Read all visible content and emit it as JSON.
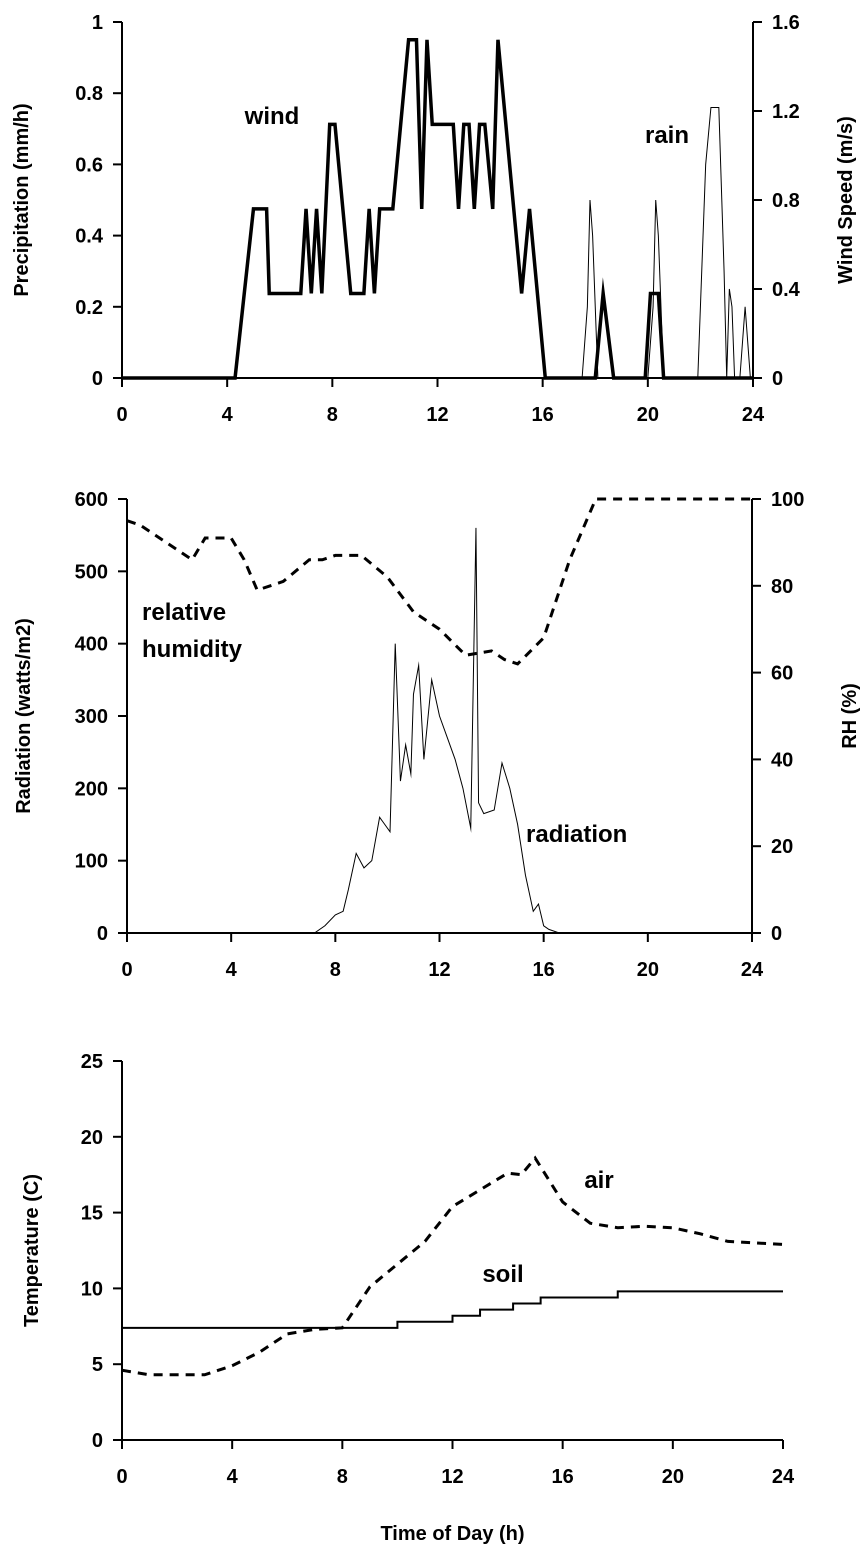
{
  "chart_data": [
    {
      "type": "line",
      "x_ticks": [
        "0",
        "4",
        "8",
        "12",
        "16",
        "20",
        "24"
      ],
      "xlim": [
        0,
        24
      ],
      "left_axis": {
        "label": "Precipitation (mm/h)",
        "ticks": [
          "0",
          "0.2",
          "0.4",
          "0.6",
          "0.8",
          "1"
        ],
        "ylim": [
          0,
          1
        ]
      },
      "right_axis": {
        "label": "Wind Speed (m/s)",
        "ticks": [
          "0",
          "0.4",
          "0.8",
          "1.2",
          "1.6"
        ],
        "ylim": [
          0,
          1.6
        ]
      },
      "annotations": {
        "wind": "wind",
        "rain": "rain"
      },
      "series": [
        {
          "name": "wind",
          "axis": "right",
          "style": "thick",
          "x": [
            0,
            4.3,
            5.0,
            5.5,
            5.6,
            6.6,
            6.8,
            7.0,
            7.2,
            7.4,
            7.6,
            7.9,
            8.1,
            8.4,
            8.7,
            9.0,
            9.2,
            9.4,
            9.6,
            9.8,
            10.3,
            10.6,
            10.9,
            11.2,
            11.4,
            11.6,
            11.8,
            12.6,
            12.8,
            13.0,
            13.2,
            13.4,
            13.6,
            13.8,
            14.1,
            14.3,
            14.6,
            15.2,
            15.5,
            16.1,
            18.0,
            18.3,
            18.7,
            19.9,
            20.1,
            20.4,
            20.6,
            24.0
          ],
          "y": [
            0,
            0,
            0.76,
            0.76,
            0.38,
            0.38,
            0.38,
            0.76,
            0.38,
            0.76,
            0.38,
            1.14,
            1.14,
            0.76,
            0.38,
            0.38,
            0.38,
            0.76,
            0.38,
            0.76,
            0.76,
            1.14,
            1.52,
            1.52,
            0.76,
            1.52,
            1.14,
            1.14,
            0.76,
            1.14,
            1.14,
            0.76,
            1.14,
            1.14,
            0.76,
            1.52,
            1.14,
            0.38,
            0.76,
            0,
            0,
            0.38,
            0,
            0,
            0.38,
            0.38,
            0,
            0
          ]
        },
        {
          "name": "rain",
          "axis": "left",
          "style": "thin",
          "x": [
            17.5,
            17.7,
            17.8,
            17.9,
            18.1,
            20.0,
            20.2,
            20.3,
            20.4,
            20.6,
            21.9,
            22.2,
            22.4,
            22.7,
            22.9,
            23.0,
            23.1,
            23.2,
            23.3,
            23.5,
            23.7,
            23.9
          ],
          "y": [
            0,
            0.2,
            0.5,
            0.4,
            0,
            0,
            0.2,
            0.5,
            0.4,
            0,
            0,
            0.6,
            0.76,
            0.76,
            0.3,
            0,
            0.25,
            0.2,
            0,
            0,
            0.2,
            0
          ]
        }
      ]
    },
    {
      "type": "line",
      "x_ticks": [
        "0",
        "4",
        "8",
        "12",
        "16",
        "20",
        "24"
      ],
      "xlim": [
        0,
        24
      ],
      "left_axis": {
        "label": "Radiation (watts/m2)",
        "ticks": [
          "0",
          "100",
          "200",
          "300",
          "400",
          "500",
          "600"
        ],
        "ylim": [
          0,
          600
        ]
      },
      "right_axis": {
        "label": "RH (%)",
        "ticks": [
          "0",
          "20",
          "40",
          "60",
          "80",
          "100"
        ],
        "ylim": [
          0,
          100
        ]
      },
      "annotations": {
        "rh_line1": "relative",
        "rh_line2": "humidity",
        "radiation": "radiation"
      },
      "series": [
        {
          "name": "radiation",
          "axis": "left",
          "style": "thin",
          "x": [
            0,
            7.2,
            7.6,
            8.0,
            8.3,
            8.5,
            8.8,
            9.1,
            9.4,
            9.7,
            9.9,
            10.1,
            10.3,
            10.5,
            10.7,
            10.9,
            11.0,
            11.2,
            11.4,
            11.7,
            12.0,
            12.3,
            12.6,
            12.9,
            13.2,
            13.4,
            13.5,
            13.7,
            14.1,
            14.4,
            14.7,
            15.0,
            15.3,
            15.6,
            15.8,
            16.0,
            16.2,
            16.6,
            24.0
          ],
          "y": [
            0,
            0,
            10,
            25,
            30,
            60,
            110,
            90,
            100,
            160,
            150,
            140,
            400,
            210,
            260,
            220,
            330,
            370,
            240,
            350,
            300,
            270,
            240,
            200,
            145,
            560,
            180,
            165,
            170,
            235,
            200,
            150,
            80,
            30,
            40,
            10,
            5,
            0,
            0
          ]
        },
        {
          "name": "relative humidity",
          "axis": "right",
          "style": "dashed",
          "x": [
            0,
            0.5,
            1.5,
            2.5,
            3.0,
            4.0,
            4.5,
            5.0,
            6.0,
            7.0,
            7.5,
            8.0,
            9.0,
            10.0,
            11.0,
            12.0,
            13.0,
            14.0,
            14.5,
            15.0,
            16.0,
            17.0,
            18.0,
            19.0,
            24.0
          ],
          "y": [
            95,
            94,
            90,
            86,
            91,
            91,
            86,
            79,
            81,
            86,
            86,
            87,
            87,
            82,
            74,
            70,
            64,
            65,
            63,
            62,
            68,
            86,
            100,
            100,
            100
          ]
        }
      ]
    },
    {
      "type": "line",
      "x_ticks": [
        "0",
        "4",
        "8",
        "12",
        "16",
        "20",
        "24"
      ],
      "xlim": [
        0,
        24
      ],
      "left_axis": {
        "label": "Temperature (C)",
        "ticks": [
          "0",
          "5",
          "10",
          "15",
          "20",
          "25"
        ],
        "ylim": [
          0,
          25
        ]
      },
      "xlabel": "Time of Day (h)",
      "annotations": {
        "air": "air",
        "soil": "soil"
      },
      "series": [
        {
          "name": "air",
          "axis": "left",
          "style": "dashed",
          "x": [
            0,
            1,
            2,
            3,
            4,
            5,
            6,
            7,
            8,
            9,
            10,
            11,
            12,
            13,
            14,
            14.5,
            15,
            16,
            17,
            18,
            19,
            20,
            21,
            22,
            23,
            24
          ],
          "y": [
            4.6,
            4.3,
            4.3,
            4.3,
            4.9,
            5.8,
            7.0,
            7.3,
            7.4,
            10.1,
            11.6,
            13.1,
            15.4,
            16.5,
            17.6,
            17.5,
            18.6,
            15.7,
            14.3,
            14.0,
            14.1,
            14.0,
            13.6,
            13.1,
            13.0,
            12.9
          ]
        },
        {
          "name": "soil",
          "axis": "left",
          "style": "solid",
          "step": true,
          "x": [
            0,
            10,
            12,
            13,
            14.2,
            15.2,
            18,
            24
          ],
          "y": [
            7.4,
            7.8,
            8.2,
            8.6,
            9.0,
            9.4,
            9.8,
            9.8
          ]
        }
      ]
    }
  ]
}
